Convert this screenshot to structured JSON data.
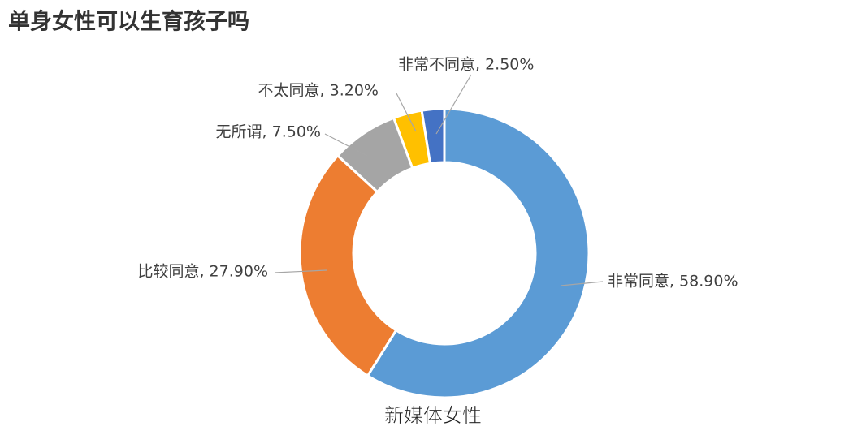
{
  "chart_data": {
    "type": "donut",
    "title": "单身女性可以生育孩子吗",
    "values": [
      58.9,
      27.9,
      7.5,
      3.2,
      2.5
    ],
    "value_labels": [
      "非常同意, 58.90%",
      "比较同意, 27.90%",
      "无所谓, 7.50%",
      "不太同意, 3.20%",
      "非常不同意, 2.50%"
    ],
    "colors": [
      "#5b9bd5",
      "#ed7d31",
      "#a5a5a5",
      "#ffc000",
      "#4472c4"
    ],
    "watermark": "新媒体女性"
  }
}
